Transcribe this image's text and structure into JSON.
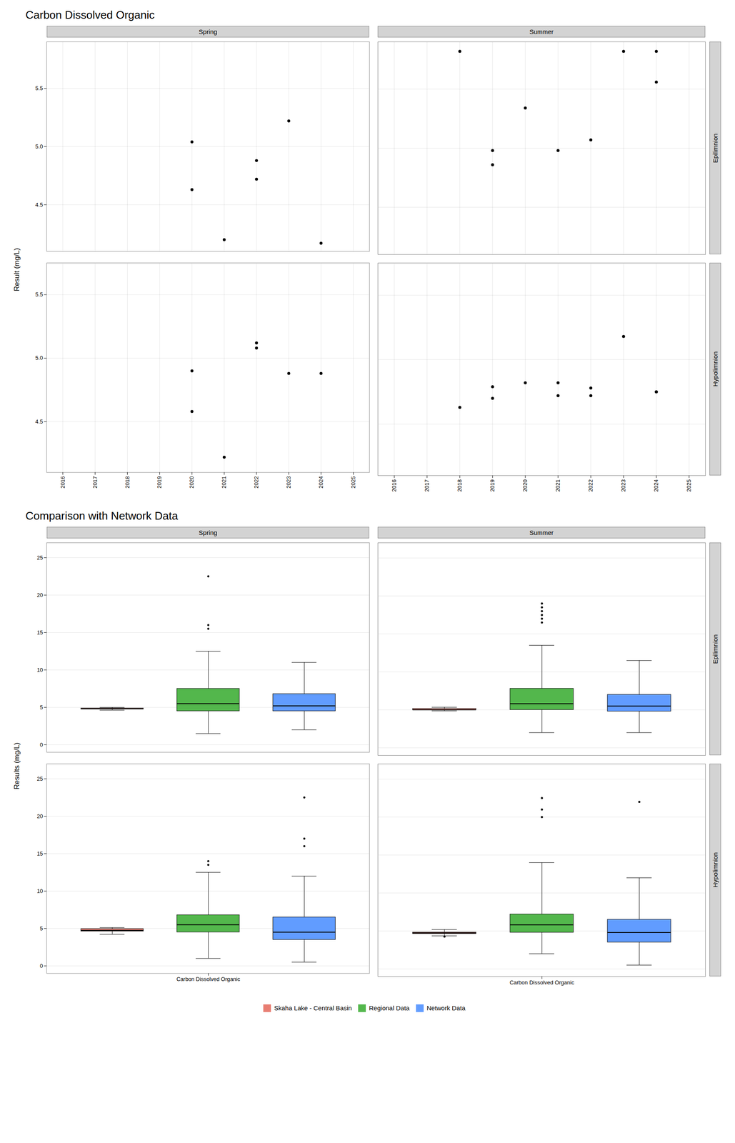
{
  "chart_data": [
    {
      "type": "scatter",
      "title": "Carbon Dissolved Organic",
      "ylabel": "Result (mg/L)",
      "columns": [
        "Spring",
        "Summer"
      ],
      "rows": [
        "Epilimnion",
        "Hypolimnion"
      ],
      "header_color": "#D3D3D3",
      "color": "black",
      "grid": true,
      "xlim": [
        2015.5,
        2025.5
      ],
      "xticks": [
        2016,
        2017,
        2018,
        2019,
        2020,
        2021,
        2022,
        2023,
        2024,
        2025
      ],
      "panels": [
        {
          "column": "Spring",
          "row": "Epilimnion",
          "x": [
            2020,
            2020,
            2021,
            2022,
            2022,
            2023,
            2024
          ],
          "y": [
            5.04,
            4.63,
            4.2,
            4.72,
            4.88,
            5.22,
            4.17
          ],
          "ylim": [
            4.1,
            5.9
          ],
          "yticks": [
            4.5,
            {
              "value": 5.0,
              "label": "5.0"
            },
            5.5
          ]
        },
        {
          "column": "Summer",
          "row": "Epilimnion",
          "x": [
            2018,
            2019,
            2019,
            2020,
            2021,
            2022,
            2023,
            2024,
            2024
          ],
          "y": [
            5.82,
            4.98,
            4.86,
            5.34,
            4.98,
            5.07,
            5.82,
            5.56,
            5.82
          ],
          "ylim": [
            4.1,
            5.9
          ],
          "yticks": [
            4.5,
            {
              "value": 5.0,
              "label": "5.0"
            },
            5.5
          ]
        },
        {
          "column": "Spring",
          "row": "Hypolimnion",
          "x": [
            2020,
            2020,
            2021,
            2022,
            2022,
            2023,
            2024
          ],
          "y": [
            4.9,
            4.58,
            4.22,
            5.12,
            5.08,
            4.88,
            4.88
          ],
          "ylim": [
            4.1,
            5.75
          ],
          "yticks": [
            4.5,
            {
              "value": 5.0,
              "label": "5.0"
            },
            5.5
          ]
        },
        {
          "column": "Summer",
          "row": "Hypolimnion",
          "x": [
            2018,
            2019,
            2019,
            2020,
            2021,
            2021,
            2022,
            2022,
            2023,
            2024,
            2024
          ],
          "y": [
            4.63,
            4.7,
            4.79,
            4.82,
            4.72,
            4.82,
            4.72,
            4.78,
            5.18,
            4.75,
            4.75
          ],
          "ylim": [
            4.1,
            5.75
          ],
          "yticks": [
            4.5,
            {
              "value": 5.0,
              "label": "5.0"
            },
            5.5
          ]
        }
      ]
    },
    {
      "type": "box",
      "title": "Comparison with Network Data",
      "ylabel": "Results (mg/L)",
      "categories": [
        "Carbon Dissolved Organic"
      ],
      "columns": [
        "Spring",
        "Summer"
      ],
      "rows": [
        "Epilimnion",
        "Hypolimnion"
      ],
      "header_color": "#D3D3D3",
      "grid": "y",
      "legend": "bottom",
      "ylim": [
        -1,
        27
      ],
      "yticks": [
        0,
        5,
        10,
        15,
        20,
        25
      ],
      "series": [
        {
          "name": "Skaha Lake - Central Basin",
          "color": "#E87D72"
        },
        {
          "name": "Regional Data",
          "color": "#53B74C"
        },
        {
          "name": "Network Data",
          "color": "#619CFF"
        }
      ],
      "panels": [
        {
          "column": "Spring",
          "row": "Epilimnion",
          "boxes": [
            {
              "median": 4.82,
              "q1": 4.75,
              "q3": 4.88,
              "whislo": 4.63,
              "whishi": 4.99,
              "fliers": []
            },
            {
              "median": 5.5,
              "q1": 4.5,
              "q3": 7.5,
              "whislo": 1.5,
              "whishi": 12.5,
              "fliers": [
                15.5,
                16.0,
                22.5
              ]
            },
            {
              "median": 5.2,
              "q1": 4.5,
              "q3": 6.8,
              "whislo": 2.0,
              "whishi": 11.0,
              "fliers": []
            }
          ]
        },
        {
          "column": "Summer",
          "row": "Epilimnion",
          "boxes": [
            {
              "median": 5.0,
              "q1": 4.98,
              "q3": 5.15,
              "whislo": 4.86,
              "whishi": 5.34,
              "fliers": []
            },
            {
              "median": 5.8,
              "q1": 5.0,
              "q3": 7.8,
              "whislo": 2.0,
              "whishi": 13.5,
              "fliers": [
                16.5,
                17.0,
                17.5,
                18.0,
                18.5,
                19.0
              ]
            },
            {
              "median": 5.5,
              "q1": 4.8,
              "q3": 7.0,
              "whislo": 2.0,
              "whishi": 11.5,
              "fliers": []
            }
          ]
        },
        {
          "column": "Spring",
          "row": "Hypolimnion",
          "boxes": [
            {
              "median": 4.75,
              "q1": 4.62,
              "q3": 4.95,
              "whislo": 4.22,
              "whishi": 5.12,
              "fliers": []
            },
            {
              "median": 5.5,
              "q1": 4.5,
              "q3": 6.8,
              "whislo": 1.0,
              "whishi": 12.5,
              "fliers": [
                13.5,
                14.0
              ]
            },
            {
              "median": 4.5,
              "q1": 3.5,
              "q3": 6.5,
              "whislo": 0.5,
              "whishi": 12.0,
              "fliers": [
                16.0,
                17.0,
                22.5
              ]
            }
          ]
        },
        {
          "column": "Summer",
          "row": "Hypolimnion",
          "boxes": [
            {
              "median": 4.75,
              "q1": 4.63,
              "q3": 4.82,
              "whislo": 4.35,
              "whishi": 5.18,
              "fliers": [
                4.27
              ]
            },
            {
              "median": 5.8,
              "q1": 4.8,
              "q3": 7.2,
              "whislo": 2.0,
              "whishi": 14.0,
              "fliers": [
                20.0,
                21.0,
                22.5
              ]
            },
            {
              "median": 4.8,
              "q1": 3.5,
              "q3": 6.5,
              "whislo": 0.5,
              "whishi": 12.0,
              "fliers": [
                22.0
              ]
            }
          ]
        }
      ]
    }
  ]
}
